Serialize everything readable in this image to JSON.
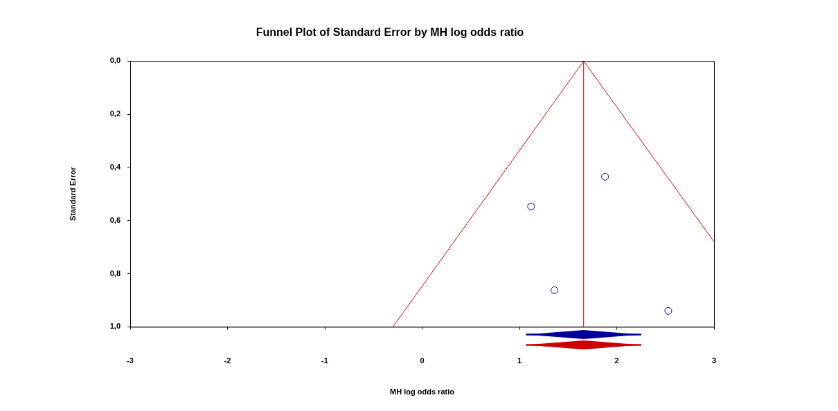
{
  "chart_data": [
    {
      "type": "scatter",
      "title": "Funnel Plot of Standard Error by MH log odds ratio",
      "ylabel": "Standard Error",
      "xlim": [
        -3,
        3
      ],
      "xticks": [
        -3,
        -2,
        -1,
        0,
        1,
        2,
        3
      ],
      "ylim": [
        1.0,
        0.0
      ],
      "yticks": [
        {
          "value": 0,
          "label": "0,0"
        },
        {
          "value": 0.2,
          "label": "0,2"
        },
        {
          "value": 0.4,
          "label": "0,4"
        },
        {
          "value": 0.6,
          "label": "0,6"
        },
        {
          "value": 0.8,
          "label": "0,8"
        },
        {
          "value": 1.0,
          "label": "1,0"
        }
      ],
      "tick_labels": "y",
      "series": [
        {
          "type": "scatter",
          "color": "#0000cc",
          "marker": "circle",
          "x": [
            1.12,
            1.88,
            1.36,
            2.53
          ],
          "values": [
            0.547,
            0.435,
            0.862,
            0.94
          ]
        },
        {
          "type": "line",
          "color": "#cc0000",
          "marker": "none",
          "x": [
            -0.3,
            1.66,
            3.0
          ],
          "values": [
            1.0,
            0.0,
            0.68
          ]
        }
      ],
      "ref_lines": [
        {
          "axis": "x",
          "value": 1.66,
          "color": "#cc0000"
        }
      ]
    },
    {
      "type": "bar",
      "orientation": "horizontal",
      "categories": [
        null,
        null
      ],
      "base": [
        1.07,
        1.07
      ],
      "values": [
        1.18,
        1.18
      ],
      "colors": [
        "#000099",
        "#cc0000"
      ],
      "xlim": [
        -3,
        3
      ],
      "xticks": [
        -3,
        -2,
        -1,
        0,
        1,
        2,
        3
      ],
      "xlabel": "MH log odds ratio",
      "tick_labels": "x"
    }
  ]
}
